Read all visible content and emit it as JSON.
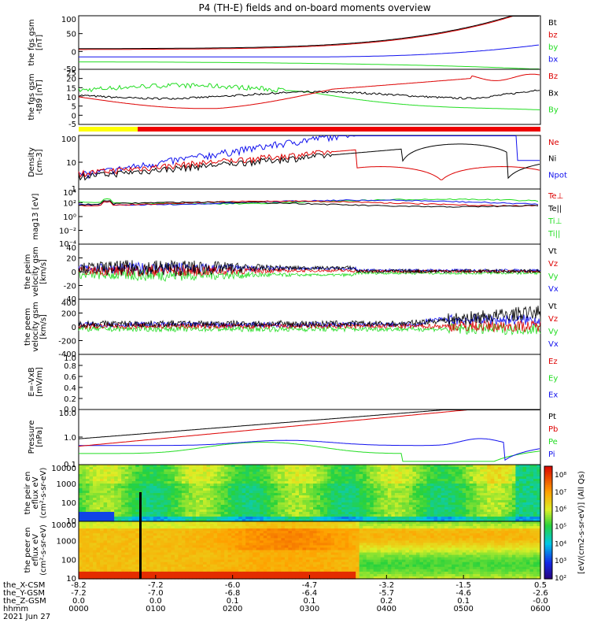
{
  "title": "P4 (TH-E) fields and on-board moments overview",
  "colors": {
    "black": "#000000",
    "red": "#dd0000",
    "green": "#22dd22",
    "blue": "#1111ee",
    "yellow": "#ffff00",
    "barred": "#ee0000"
  },
  "time_axis": {
    "rows": [
      {
        "label": "the_X-CSM",
        "values": [
          "-8.2",
          "-7.2",
          "-6.0",
          "-4.7",
          "-3.2",
          "-1.5",
          "0.5"
        ]
      },
      {
        "label": "the_Y-GSM",
        "values": [
          "-7.2",
          "-7.0",
          "-6.8",
          "-6.4",
          "-5.7",
          "-4.6",
          "-2.6"
        ]
      },
      {
        "label": "the_Z-GSM",
        "values": [
          "0.0",
          "0.0",
          "0.1",
          "0.1",
          "0.2",
          "0.1",
          "-0.0"
        ]
      },
      {
        "label": "hhmm",
        "values": [
          "0000",
          "0100",
          "0200",
          "0300",
          "0400",
          "0500",
          "0600"
        ]
      }
    ],
    "date": "2021 Jun 27"
  },
  "chart_data": [
    {
      "type": "line",
      "panel": "fgs-gse",
      "ylabel": "the fgs gsm [nT]",
      "ylim": [
        -30,
        100
      ],
      "yticks": [
        "100",
        "50",
        "0",
        "-50"
      ],
      "series": [
        {
          "name": "Bt",
          "color": "black"
        },
        {
          "name": "bz",
          "color": "red"
        },
        {
          "name": "by",
          "color": "green"
        },
        {
          "name": "bx",
          "color": "blue"
        }
      ]
    },
    {
      "type": "line",
      "panel": "fgs-zoom",
      "ylabel": "the fgs gsm -t89 [nT]",
      "ylim": [
        -8,
        26
      ],
      "yticks": [
        "25",
        "20",
        "15",
        "10",
        "5",
        "0",
        "-5"
      ],
      "series": [
        {
          "name": "Bz",
          "color": "red"
        },
        {
          "name": "Bx",
          "color": "black"
        },
        {
          "name": "By",
          "color": "green"
        }
      ]
    },
    {
      "type": "line",
      "panel": "density",
      "ylabel": "Density [cm-3]",
      "scale": "log",
      "ylim": [
        0.1,
        100
      ],
      "yticks": [
        "100",
        "10",
        "1"
      ],
      "series": [
        {
          "name": "Ne",
          "color": "red"
        },
        {
          "name": "Ni",
          "color": "black"
        },
        {
          "name": "Npot",
          "color": "blue"
        }
      ]
    },
    {
      "type": "line",
      "panel": "temperature",
      "ylabel": "mag13 [eV]",
      "scale": "log",
      "yticks": [
        "10⁴",
        "10²",
        "10⁰",
        "10⁻²",
        "10⁻⁴"
      ],
      "series": [
        {
          "name": "Te⊥",
          "color": "red"
        },
        {
          "name": "Te||",
          "color": "black"
        },
        {
          "name": "Ti⊥",
          "color": "green"
        },
        {
          "name": "Ti||",
          "color": "green"
        }
      ]
    },
    {
      "type": "line",
      "panel": "peim-velocity",
      "ylabel": "the peim velocity gsm [km/s]",
      "ylim": [
        -40,
        40
      ],
      "yticks": [
        "40",
        "20",
        "0",
        "-20",
        "-40"
      ],
      "series": [
        {
          "name": "Vt",
          "color": "black"
        },
        {
          "name": "Vz",
          "color": "red"
        },
        {
          "name": "Vy",
          "color": "green"
        },
        {
          "name": "Vx",
          "color": "blue"
        }
      ]
    },
    {
      "type": "line",
      "panel": "peem-velocity",
      "ylabel": "the peem velocity gsm [km/s]",
      "ylim": [
        -400,
        400
      ],
      "yticks": [
        "400",
        "200",
        "0",
        "-200",
        "-400"
      ],
      "series": [
        {
          "name": "Vt",
          "color": "black"
        },
        {
          "name": "Vz",
          "color": "red"
        },
        {
          "name": "Vy",
          "color": "green"
        },
        {
          "name": "Vx",
          "color": "blue"
        }
      ]
    },
    {
      "type": "line",
      "panel": "efield",
      "ylabel": "E=-VxB [mV/m]",
      "ylim": [
        0,
        1
      ],
      "yticks": [
        "1.0",
        "0.8",
        "0.6",
        "0.4",
        "0.2",
        "0.0"
      ],
      "series": [
        {
          "name": "Ez",
          "color": "red"
        },
        {
          "name": "Ey",
          "color": "green"
        },
        {
          "name": "Ex",
          "color": "blue"
        }
      ]
    },
    {
      "type": "line",
      "panel": "pressure",
      "ylabel": "Pressure [nPa]",
      "scale": "log",
      "ylim": [
        0.02,
        20
      ],
      "yticks": [
        "10.0",
        "1.0",
        "0.1"
      ],
      "series": [
        {
          "name": "Pt",
          "color": "black"
        },
        {
          "name": "Pb",
          "color": "red"
        },
        {
          "name": "Pe",
          "color": "green"
        },
        {
          "name": "Pi",
          "color": "blue"
        }
      ]
    },
    {
      "type": "heatmap",
      "panel": "peir",
      "ylabel": "the peir en eflux eV (cm²-s-sr-eV)",
      "yticks": [
        "10000",
        "1000",
        "100",
        "10"
      ]
    },
    {
      "type": "heatmap",
      "panel": "peer",
      "ylabel": "the peer en eflux eV (cm²-s-sr-eV)",
      "yticks": [
        "10000",
        "1000",
        "100",
        "10"
      ]
    }
  ],
  "colorbar": {
    "ticks": [
      "10⁸",
      "10⁷",
      "10⁶",
      "10⁵",
      "10⁴",
      "10³",
      "10²"
    ],
    "label": "[eV/(cm2-s-sr-eV)] (All Qs)"
  }
}
